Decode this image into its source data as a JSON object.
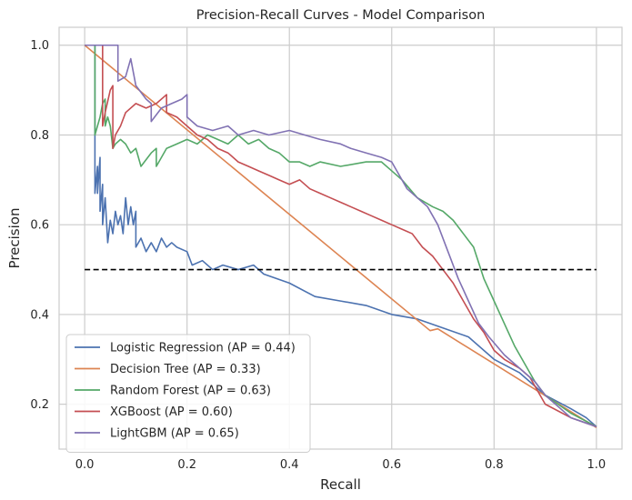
{
  "chart_data": {
    "type": "line",
    "title": "Precision-Recall Curves - Model Comparison",
    "xlabel": "Recall",
    "ylabel": "Precision",
    "xlim": [
      -0.05,
      1.05
    ],
    "ylim": [
      0.1,
      1.04
    ],
    "xticks": [
      0.0,
      0.2,
      0.4,
      0.6,
      0.8,
      1.0
    ],
    "yticks": [
      0.2,
      0.4,
      0.6,
      0.8,
      1.0
    ],
    "grid": true,
    "legend_position": "lower-left",
    "baseline": {
      "y": 0.5,
      "x_range": [
        0,
        1
      ],
      "style": "dashed",
      "color": "#000000"
    },
    "series": [
      {
        "name": "Logistic Regression (AP = 0.44)",
        "color": "#4c72b0",
        "points": [
          [
            0,
            1.0
          ],
          [
            0.02,
            1.0
          ],
          [
            0.02,
            0.67
          ],
          [
            0.025,
            0.73
          ],
          [
            0.025,
            0.67
          ],
          [
            0.03,
            0.75
          ],
          [
            0.03,
            0.63
          ],
          [
            0.035,
            0.69
          ],
          [
            0.035,
            0.6
          ],
          [
            0.04,
            0.66
          ],
          [
            0.045,
            0.56
          ],
          [
            0.05,
            0.61
          ],
          [
            0.055,
            0.58
          ],
          [
            0.06,
            0.63
          ],
          [
            0.065,
            0.6
          ],
          [
            0.07,
            0.62
          ],
          [
            0.075,
            0.58
          ],
          [
            0.08,
            0.66
          ],
          [
            0.085,
            0.6
          ],
          [
            0.09,
            0.64
          ],
          [
            0.095,
            0.6
          ],
          [
            0.1,
            0.63
          ],
          [
            0.1,
            0.55
          ],
          [
            0.11,
            0.57
          ],
          [
            0.12,
            0.54
          ],
          [
            0.13,
            0.56
          ],
          [
            0.14,
            0.54
          ],
          [
            0.15,
            0.57
          ],
          [
            0.16,
            0.55
          ],
          [
            0.17,
            0.56
          ],
          [
            0.18,
            0.55
          ],
          [
            0.2,
            0.54
          ],
          [
            0.21,
            0.51
          ],
          [
            0.23,
            0.52
          ],
          [
            0.25,
            0.5
          ],
          [
            0.27,
            0.51
          ],
          [
            0.3,
            0.5
          ],
          [
            0.33,
            0.51
          ],
          [
            0.35,
            0.49
          ],
          [
            0.4,
            0.47
          ],
          [
            0.45,
            0.44
          ],
          [
            0.5,
            0.43
          ],
          [
            0.55,
            0.42
          ],
          [
            0.6,
            0.4
          ],
          [
            0.65,
            0.39
          ],
          [
            0.7,
            0.37
          ],
          [
            0.75,
            0.35
          ],
          [
            0.8,
            0.3
          ],
          [
            0.85,
            0.27
          ],
          [
            0.9,
            0.22
          ],
          [
            0.95,
            0.19
          ],
          [
            0.98,
            0.17
          ],
          [
            1.0,
            0.15
          ]
        ]
      },
      {
        "name": "Decision Tree (AP = 0.33)",
        "color": "#dd8452",
        "points": [
          [
            0,
            1.0
          ],
          [
            0.675,
            0.364
          ],
          [
            0.69,
            0.368
          ],
          [
            1.0,
            0.148
          ]
        ]
      },
      {
        "name": "Random Forest (AP = 0.63)",
        "color": "#55a868",
        "points": [
          [
            0,
            1.0
          ],
          [
            0.02,
            1.0
          ],
          [
            0.02,
            0.8
          ],
          [
            0.03,
            0.84
          ],
          [
            0.035,
            0.87
          ],
          [
            0.04,
            0.88
          ],
          [
            0.04,
            0.82
          ],
          [
            0.045,
            0.84
          ],
          [
            0.05,
            0.82
          ],
          [
            0.055,
            0.77
          ],
          [
            0.06,
            0.78
          ],
          [
            0.07,
            0.79
          ],
          [
            0.08,
            0.78
          ],
          [
            0.09,
            0.76
          ],
          [
            0.1,
            0.77
          ],
          [
            0.11,
            0.73
          ],
          [
            0.13,
            0.76
          ],
          [
            0.14,
            0.77
          ],
          [
            0.14,
            0.73
          ],
          [
            0.16,
            0.77
          ],
          [
            0.18,
            0.78
          ],
          [
            0.2,
            0.79
          ],
          [
            0.22,
            0.78
          ],
          [
            0.24,
            0.8
          ],
          [
            0.26,
            0.79
          ],
          [
            0.28,
            0.78
          ],
          [
            0.3,
            0.8
          ],
          [
            0.32,
            0.78
          ],
          [
            0.34,
            0.79
          ],
          [
            0.36,
            0.77
          ],
          [
            0.38,
            0.76
          ],
          [
            0.4,
            0.74
          ],
          [
            0.42,
            0.74
          ],
          [
            0.44,
            0.73
          ],
          [
            0.46,
            0.74
          ],
          [
            0.5,
            0.73
          ],
          [
            0.55,
            0.74
          ],
          [
            0.58,
            0.74
          ],
          [
            0.6,
            0.72
          ],
          [
            0.62,
            0.7
          ],
          [
            0.65,
            0.66
          ],
          [
            0.68,
            0.64
          ],
          [
            0.7,
            0.63
          ],
          [
            0.72,
            0.61
          ],
          [
            0.74,
            0.58
          ],
          [
            0.76,
            0.55
          ],
          [
            0.78,
            0.48
          ],
          [
            0.8,
            0.43
          ],
          [
            0.82,
            0.38
          ],
          [
            0.84,
            0.33
          ],
          [
            0.86,
            0.29
          ],
          [
            0.88,
            0.25
          ],
          [
            0.9,
            0.22
          ],
          [
            0.95,
            0.18
          ],
          [
            1.0,
            0.15
          ]
        ]
      },
      {
        "name": "XGBoost (AP = 0.60)",
        "color": "#c44e52",
        "points": [
          [
            0,
            1.0
          ],
          [
            0.035,
            1.0
          ],
          [
            0.035,
            0.82
          ],
          [
            0.04,
            0.85
          ],
          [
            0.05,
            0.9
          ],
          [
            0.055,
            0.91
          ],
          [
            0.055,
            0.77
          ],
          [
            0.06,
            0.8
          ],
          [
            0.07,
            0.82
          ],
          [
            0.08,
            0.85
          ],
          [
            0.1,
            0.87
          ],
          [
            0.12,
            0.86
          ],
          [
            0.14,
            0.87
          ],
          [
            0.16,
            0.89
          ],
          [
            0.16,
            0.85
          ],
          [
            0.18,
            0.84
          ],
          [
            0.2,
            0.82
          ],
          [
            0.22,
            0.8
          ],
          [
            0.24,
            0.79
          ],
          [
            0.26,
            0.77
          ],
          [
            0.28,
            0.76
          ],
          [
            0.3,
            0.74
          ],
          [
            0.32,
            0.73
          ],
          [
            0.34,
            0.72
          ],
          [
            0.36,
            0.71
          ],
          [
            0.38,
            0.7
          ],
          [
            0.4,
            0.69
          ],
          [
            0.42,
            0.7
          ],
          [
            0.44,
            0.68
          ],
          [
            0.46,
            0.67
          ],
          [
            0.48,
            0.66
          ],
          [
            0.5,
            0.65
          ],
          [
            0.52,
            0.64
          ],
          [
            0.54,
            0.63
          ],
          [
            0.56,
            0.62
          ],
          [
            0.58,
            0.61
          ],
          [
            0.6,
            0.6
          ],
          [
            0.62,
            0.59
          ],
          [
            0.64,
            0.58
          ],
          [
            0.66,
            0.55
          ],
          [
            0.68,
            0.53
          ],
          [
            0.7,
            0.5
          ],
          [
            0.72,
            0.47
          ],
          [
            0.74,
            0.43
          ],
          [
            0.76,
            0.39
          ],
          [
            0.78,
            0.36
          ],
          [
            0.8,
            0.32
          ],
          [
            0.82,
            0.3
          ],
          [
            0.85,
            0.28
          ],
          [
            0.87,
            0.26
          ],
          [
            0.9,
            0.2
          ],
          [
            0.95,
            0.17
          ],
          [
            1.0,
            0.15
          ]
        ]
      },
      {
        "name": "LightGBM (AP = 0.65)",
        "color": "#8172b3",
        "points": [
          [
            0,
            1.0
          ],
          [
            0.065,
            1.0
          ],
          [
            0.065,
            0.92
          ],
          [
            0.08,
            0.93
          ],
          [
            0.09,
            0.97
          ],
          [
            0.1,
            0.91
          ],
          [
            0.12,
            0.88
          ],
          [
            0.13,
            0.87
          ],
          [
            0.13,
            0.83
          ],
          [
            0.15,
            0.86
          ],
          [
            0.17,
            0.87
          ],
          [
            0.19,
            0.88
          ],
          [
            0.2,
            0.89
          ],
          [
            0.2,
            0.84
          ],
          [
            0.22,
            0.82
          ],
          [
            0.25,
            0.81
          ],
          [
            0.28,
            0.82
          ],
          [
            0.3,
            0.8
          ],
          [
            0.33,
            0.81
          ],
          [
            0.36,
            0.8
          ],
          [
            0.4,
            0.81
          ],
          [
            0.43,
            0.8
          ],
          [
            0.46,
            0.79
          ],
          [
            0.5,
            0.78
          ],
          [
            0.52,
            0.77
          ],
          [
            0.55,
            0.76
          ],
          [
            0.58,
            0.75
          ],
          [
            0.6,
            0.74
          ],
          [
            0.61,
            0.72
          ],
          [
            0.63,
            0.68
          ],
          [
            0.65,
            0.66
          ],
          [
            0.67,
            0.64
          ],
          [
            0.69,
            0.6
          ],
          [
            0.71,
            0.54
          ],
          [
            0.73,
            0.48
          ],
          [
            0.75,
            0.43
          ],
          [
            0.77,
            0.38
          ],
          [
            0.79,
            0.35
          ],
          [
            0.82,
            0.31
          ],
          [
            0.85,
            0.28
          ],
          [
            0.88,
            0.25
          ],
          [
            0.9,
            0.22
          ],
          [
            0.95,
            0.17
          ],
          [
            1.0,
            0.15
          ]
        ]
      }
    ]
  }
}
